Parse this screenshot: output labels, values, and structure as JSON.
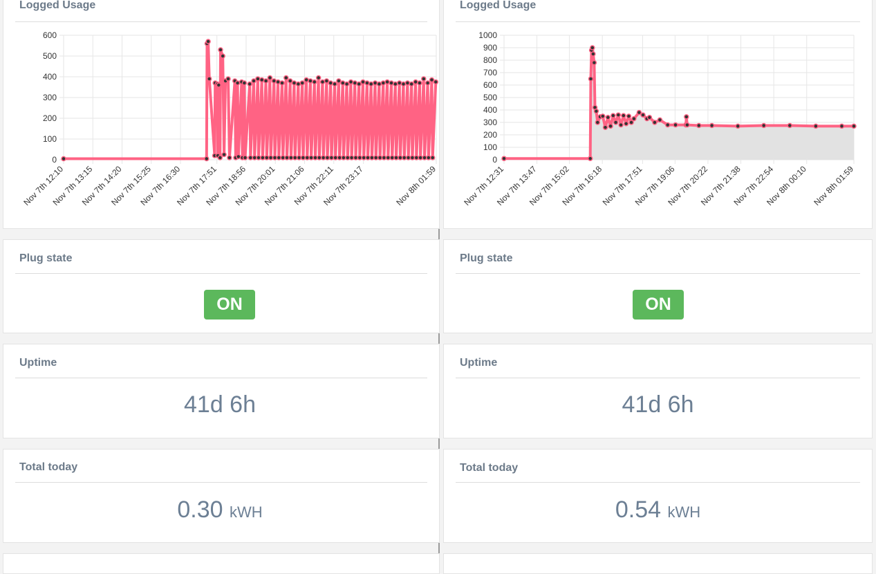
{
  "panels": [
    {
      "logged_usage_title": "Logged Usage",
      "plug_state_title": "Plug state",
      "plug_state": "ON",
      "uptime_title": "Uptime",
      "uptime": "41d 6h",
      "total_title": "Total today",
      "total_value": "0.30",
      "total_unit": "kWH"
    },
    {
      "logged_usage_title": "Logged Usage",
      "plug_state_title": "Plug state",
      "plug_state": "ON",
      "uptime_title": "Uptime",
      "uptime": "41d 6h",
      "total_title": "Total today",
      "total_value": "0.54",
      "total_unit": "kWH"
    }
  ],
  "chart_data": [
    {
      "type": "line",
      "title": "Logged Usage",
      "ylim": [
        0,
        600
      ],
      "yticks": [
        0,
        100,
        200,
        300,
        400,
        500,
        600
      ],
      "x_tick_labels": [
        "Nov 7th 12:10",
        "Nov 7th 13:15",
        "Nov 7th 14:20",
        "Nov 7th 15:25",
        "Nov 7th 16:30",
        "Nov 7th 17:51",
        "Nov 7th 18:56",
        "Nov 7th 20:01",
        "Nov 7th 21:06",
        "Nov 7th 22:11",
        "Nov 7th 23:17",
        "Nov 8th 01:59"
      ],
      "x_hours": [
        0,
        1.0833,
        2.1667,
        3.25,
        4.3333,
        5.6833,
        6.7667,
        7.85,
        8.9333,
        10.0167,
        11.1167,
        13.8167
      ],
      "line_color": "#ff6384",
      "grid": true,
      "series": [
        {
          "x": [
            0,
            5.3,
            5.32,
            5.36,
            5.4,
            5.6,
            5.62,
            5.7,
            5.72,
            5.75,
            5.8,
            5.82,
            5.9,
            5.95,
            6.0,
            6.1,
            6.15,
            6.35,
            6.38,
            6.45,
            6.48,
            6.6,
            6.63,
            6.7,
            6.73,
            6.9,
            6.93,
            7.05,
            7.08,
            7.2,
            7.23,
            7.35,
            7.38,
            7.5,
            7.53,
            7.65,
            7.68,
            7.8,
            7.83,
            7.95,
            7.98,
            8.1,
            8.13,
            8.25,
            8.28,
            8.4,
            8.43,
            8.55,
            8.58,
            8.7,
            8.73,
            8.85,
            8.88,
            9.0,
            9.03,
            9.15,
            9.18,
            9.3,
            9.33,
            9.45,
            9.48,
            9.6,
            9.63,
            9.75,
            9.78,
            9.9,
            9.93,
            10.05,
            10.08,
            10.2,
            10.23,
            10.35,
            10.38,
            10.5,
            10.53,
            10.65,
            10.68,
            10.8,
            10.83,
            10.95,
            10.98,
            11.1,
            11.13,
            11.25,
            11.28,
            11.4,
            11.43,
            11.55,
            11.58,
            11.7,
            11.73,
            11.85,
            11.88,
            12.0,
            12.03,
            12.15,
            12.18,
            12.3,
            12.33,
            12.45,
            12.48,
            12.6,
            12.63,
            12.75,
            12.78,
            12.9,
            12.93,
            13.05,
            13.08,
            13.2,
            13.23,
            13.35,
            13.38,
            13.5,
            13.53,
            13.65,
            13.68,
            13.8
          ],
          "y": [
            5,
            5,
            560,
            570,
            390,
            20,
            370,
            365,
            20,
            360,
            10,
            530,
            500,
            25,
            380,
            390,
            10,
            380,
            10,
            370,
            15,
            375,
            10,
            370,
            10,
            365,
            10,
            380,
            10,
            390,
            10,
            385,
            10,
            380,
            10,
            395,
            10,
            380,
            10,
            375,
            10,
            370,
            10,
            395,
            10,
            380,
            10,
            370,
            10,
            365,
            10,
            370,
            10,
            385,
            10,
            380,
            10,
            375,
            10,
            395,
            10,
            375,
            10,
            380,
            10,
            370,
            10,
            365,
            10,
            380,
            10,
            370,
            10,
            365,
            10,
            375,
            10,
            370,
            10,
            365,
            10,
            375,
            10,
            370,
            10,
            365,
            10,
            370,
            10,
            365,
            10,
            370,
            10,
            375,
            10,
            370,
            10,
            365,
            10,
            370,
            10,
            365,
            10,
            370,
            10,
            365,
            10,
            375,
            10,
            370,
            10,
            390,
            10,
            370,
            10,
            385,
            10,
            375
          ]
        }
      ]
    },
    {
      "type": "area",
      "title": "Logged Usage",
      "ylim": [
        0,
        1000
      ],
      "yticks": [
        0,
        100,
        200,
        300,
        400,
        500,
        600,
        700,
        800,
        900,
        1000
      ],
      "x_tick_labels": [
        "Nov 7th 12:31",
        "Nov 7th 13:47",
        "Nov 7th 15:02",
        "Nov 7th 16:18",
        "Nov 7th 17:51",
        "Nov 7th 19:06",
        "Nov 7th 20:22",
        "Nov 7th 21:38",
        "Nov 7th 22:54",
        "Nov 8th 00:10",
        "Nov 8th 01:59"
      ],
      "x_hours": [
        0,
        1.2667,
        2.5167,
        3.7833,
        5.3333,
        6.5833,
        7.85,
        9.1167,
        10.3833,
        11.65,
        13.4667
      ],
      "line_color": "#ff6384",
      "fill_color": "#e2e2e2",
      "grid": true,
      "series": [
        {
          "x": [
            0,
            3.32,
            3.34,
            3.37,
            3.4,
            3.43,
            3.47,
            3.5,
            3.55,
            3.6,
            3.7,
            3.8,
            3.9,
            4.0,
            4.1,
            4.2,
            4.3,
            4.4,
            4.5,
            4.6,
            4.7,
            4.8,
            4.9,
            5.0,
            5.2,
            5.35,
            5.5,
            5.6,
            5.8,
            6.0,
            6.3,
            6.6,
            7.0,
            7.02,
            7.05,
            7.5,
            8.0,
            9.0,
            10.0,
            11.0,
            12.0,
            13.0,
            13.4667
          ],
          "y": [
            10,
            10,
            650,
            880,
            900,
            850,
            780,
            420,
            390,
            300,
            345,
            350,
            260,
            340,
            270,
            355,
            300,
            360,
            280,
            355,
            290,
            350,
            300,
            330,
            380,
            360,
            330,
            340,
            300,
            320,
            280,
            280,
            280,
            345,
            280,
            275,
            275,
            270,
            275,
            275,
            270,
            270,
            270
          ]
        }
      ]
    }
  ]
}
